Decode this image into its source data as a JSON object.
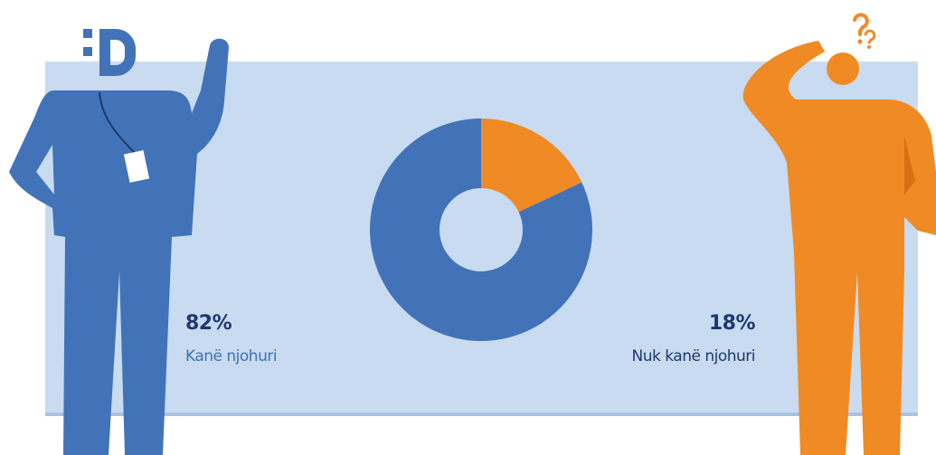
{
  "chart_data": {
    "type": "donut",
    "categories": [
      "Kanë njohuri",
      "Nuk kanë njohuri"
    ],
    "values": [
      82,
      18
    ],
    "value_labels": [
      "82%",
      "18%"
    ],
    "colors": [
      "#4273b9",
      "#f08a24"
    ]
  }
}
